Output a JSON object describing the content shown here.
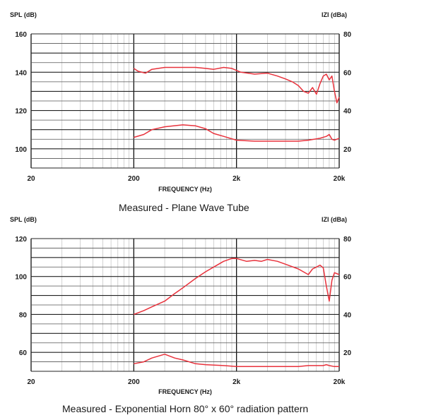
{
  "chart_data": [
    {
      "type": "line",
      "title": "",
      "caption": "Measured - Plane Wave Tube",
      "xlabel": "FREQUENCY (Hz)",
      "xscale": "log",
      "xlim": [
        20,
        20000
      ],
      "x_ticks": [
        "20",
        "200",
        "2k",
        "20k"
      ],
      "ylabel_left": "SPL (dB)",
      "ylim_left": [
        90,
        160
      ],
      "y_ticks_left": [
        "160",
        "140",
        "120",
        "100"
      ],
      "ylabel_right": "IZI (dBa)",
      "ylim_right": [
        10,
        80
      ],
      "y_ticks_right": [
        "80",
        "60",
        "40",
        "20"
      ],
      "grid": true,
      "line_color": "#e8323c",
      "series": [
        {
          "axis": "left",
          "points": [
            [
              200,
              142
            ],
            [
              220,
              140.5
            ],
            [
              260,
              139.5
            ],
            [
              300,
              141.5
            ],
            [
              400,
              142.5
            ],
            [
              600,
              142.5
            ],
            [
              800,
              142.5
            ],
            [
              1000,
              142
            ],
            [
              1200,
              141.5
            ],
            [
              1500,
              142.5
            ],
            [
              1800,
              142
            ],
            [
              2200,
              140
            ],
            [
              3000,
              139
            ],
            [
              4000,
              139.5
            ],
            [
              5000,
              138
            ],
            [
              6000,
              136.5
            ],
            [
              7000,
              135
            ],
            [
              8000,
              133
            ],
            [
              9000,
              130
            ],
            [
              10000,
              129
            ],
            [
              11000,
              132
            ],
            [
              12000,
              128.5
            ],
            [
              13000,
              134
            ],
            [
              14000,
              138
            ],
            [
              15000,
              139
            ],
            [
              16000,
              136
            ],
            [
              17000,
              138
            ],
            [
              18000,
              130
            ],
            [
              19000,
              124
            ],
            [
              20000,
              127
            ]
          ]
        },
        {
          "axis": "left",
          "points": [
            [
              200,
              106
            ],
            [
              250,
              107.5
            ],
            [
              300,
              110
            ],
            [
              400,
              111.5
            ],
            [
              600,
              112.5
            ],
            [
              800,
              112
            ],
            [
              1000,
              110.5
            ],
            [
              1200,
              108
            ],
            [
              1500,
              106.5
            ],
            [
              2000,
              104.5
            ],
            [
              3000,
              104
            ],
            [
              5000,
              104
            ],
            [
              8000,
              104
            ],
            [
              10000,
              104.5
            ],
            [
              13000,
              105.5
            ],
            [
              15000,
              106.5
            ],
            [
              16000,
              107.5
            ],
            [
              17000,
              105
            ],
            [
              18000,
              104.5
            ],
            [
              20000,
              105.5
            ]
          ]
        }
      ]
    },
    {
      "type": "line",
      "title": "",
      "caption": "Measured - Exponential Horn 80° x 60° radiation pattern",
      "xlabel": "FREQUENCY (Hz)",
      "xscale": "log",
      "xlim": [
        20,
        20000
      ],
      "x_ticks": [
        "20",
        "200",
        "2k",
        "20k"
      ],
      "ylabel_left": "SPL (dB)",
      "ylim_left": [
        50,
        120
      ],
      "y_ticks_left": [
        "120",
        "100",
        "80",
        "60"
      ],
      "ylabel_right": "IZI (dBa)",
      "ylim_right": [
        10,
        80
      ],
      "y_ticks_right": [
        "80",
        "60",
        "40",
        "20"
      ],
      "grid": true,
      "line_color": "#e8323c",
      "series": [
        {
          "axis": "left",
          "points": [
            [
              200,
              80
            ],
            [
              250,
              82
            ],
            [
              300,
              84
            ],
            [
              400,
              87
            ],
            [
              500,
              91
            ],
            [
              600,
              94
            ],
            [
              800,
              99
            ],
            [
              1000,
              102.5
            ],
            [
              1200,
              105
            ],
            [
              1500,
              108
            ],
            [
              1800,
              109.5
            ],
            [
              2000,
              109.5
            ],
            [
              2500,
              108
            ],
            [
              3000,
              108.5
            ],
            [
              3500,
              108
            ],
            [
              4000,
              109
            ],
            [
              5000,
              108
            ],
            [
              6000,
              106.5
            ],
            [
              8000,
              104
            ],
            [
              10000,
              101
            ],
            [
              11000,
              104
            ],
            [
              12000,
              105
            ],
            [
              13000,
              106
            ],
            [
              14000,
              104.5
            ],
            [
              15000,
              95
            ],
            [
              16000,
              87
            ],
            [
              17000,
              98
            ],
            [
              18000,
              102
            ],
            [
              20000,
              101
            ]
          ]
        },
        {
          "axis": "left",
          "points": [
            [
              200,
              54
            ],
            [
              250,
              55
            ],
            [
              300,
              57
            ],
            [
              400,
              59
            ],
            [
              500,
              57
            ],
            [
              600,
              56
            ],
            [
              800,
              54
            ],
            [
              1000,
              53.5
            ],
            [
              1500,
              53
            ],
            [
              2000,
              52.5
            ],
            [
              3000,
              52.5
            ],
            [
              5000,
              52.5
            ],
            [
              8000,
              52.5
            ],
            [
              10000,
              53
            ],
            [
              12000,
              53
            ],
            [
              14000,
              53
            ],
            [
              15000,
              53.5
            ],
            [
              16000,
              53
            ],
            [
              18000,
              52.5
            ],
            [
              20000,
              52.5
            ]
          ]
        }
      ]
    }
  ]
}
